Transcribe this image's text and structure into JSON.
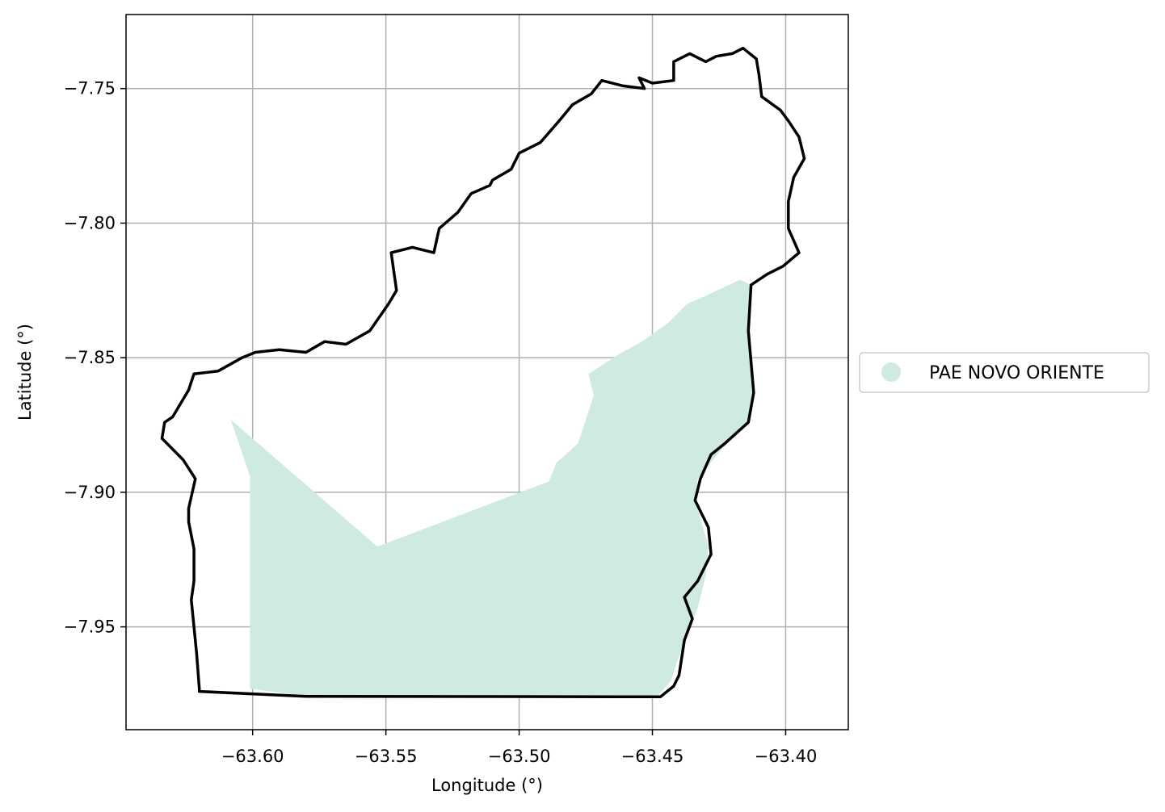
{
  "chart_data": {
    "type": "map",
    "xlabel": "Longitude (°)",
    "ylabel": "Latitude (°)",
    "xlim": [
      -63.6475,
      -63.3765
    ],
    "ylim": [
      -7.9882,
      -7.7225
    ],
    "grid": true,
    "x_ticks": [
      {
        "value": -63.6,
        "label": "−63.60"
      },
      {
        "value": -63.55,
        "label": "−63.55"
      },
      {
        "value": -63.5,
        "label": "−63.50"
      },
      {
        "value": -63.45,
        "label": "−63.45"
      },
      {
        "value": -63.4,
        "label": "−63.40"
      }
    ],
    "y_ticks": [
      {
        "value": -7.75,
        "label": "−7.75"
      },
      {
        "value": -7.8,
        "label": "−7.80"
      },
      {
        "value": -7.85,
        "label": "−7.85"
      },
      {
        "value": -7.9,
        "label": "−7.90"
      },
      {
        "value": -7.95,
        "label": "−7.95"
      }
    ],
    "legend": {
      "placement": "center-right outside",
      "entries": [
        {
          "label": "PAE NOVO ORIENTE",
          "color": "#cfeadf",
          "marker": "circle"
        }
      ]
    },
    "series": [
      {
        "name": "PAE NOVO ORIENTE",
        "kind": "filled-polygon",
        "color": "#cfeadf",
        "coordinates": [
          [
            -63.6082,
            -7.873
          ],
          [
            -63.5532,
            -7.9202
          ],
          [
            -63.4889,
            -7.896
          ],
          [
            -63.486,
            -7.889
          ],
          [
            -63.478,
            -7.882
          ],
          [
            -63.472,
            -7.864
          ],
          [
            -63.474,
            -7.856
          ],
          [
            -63.463,
            -7.849
          ],
          [
            -63.454,
            -7.844
          ],
          [
            -63.444,
            -7.837
          ],
          [
            -63.437,
            -7.83
          ],
          [
            -63.43,
            -7.827
          ],
          [
            -63.417,
            -7.821
          ],
          [
            -63.413,
            -7.823
          ],
          [
            -63.414,
            -7.84
          ],
          [
            -63.412,
            -7.863
          ],
          [
            -63.414,
            -7.874
          ],
          [
            -63.424,
            -7.884
          ],
          [
            -63.433,
            -7.895
          ],
          [
            -63.434,
            -7.903
          ],
          [
            -63.429,
            -7.92
          ],
          [
            -63.43,
            -7.931
          ],
          [
            -63.433,
            -7.943
          ],
          [
            -63.439,
            -7.958
          ],
          [
            -63.443,
            -7.97
          ],
          [
            -63.448,
            -7.9757
          ],
          [
            -63.58,
            -7.9757
          ],
          [
            -63.601,
            -7.973
          ],
          [
            -63.601,
            -7.894
          ]
        ]
      },
      {
        "name": "",
        "kind": "boundary-outline",
        "color": "#000000",
        "coordinates": [
          [
            -63.62,
            -7.973
          ],
          [
            -63.621,
            -7.96
          ],
          [
            -63.622,
            -7.95
          ],
          [
            -63.623,
            -7.94
          ],
          [
            -63.622,
            -7.933
          ],
          [
            -63.622,
            -7.921
          ],
          [
            -63.624,
            -7.911
          ],
          [
            -63.624,
            -7.906
          ],
          [
            -63.6215,
            -7.895
          ],
          [
            -63.626,
            -7.888
          ],
          [
            -63.631,
            -7.883
          ],
          [
            -63.634,
            -7.88
          ],
          [
            -63.633,
            -7.874
          ],
          [
            -63.63,
            -7.872
          ],
          [
            -63.627,
            -7.867
          ],
          [
            -63.624,
            -7.862
          ],
          [
            -63.622,
            -7.856
          ],
          [
            -63.613,
            -7.855
          ],
          [
            -63.604,
            -7.85
          ],
          [
            -63.599,
            -7.848
          ],
          [
            -63.59,
            -7.847
          ],
          [
            -63.58,
            -7.848
          ],
          [
            -63.573,
            -7.844
          ],
          [
            -63.565,
            -7.845
          ],
          [
            -63.556,
            -7.84
          ],
          [
            -63.549,
            -7.83
          ],
          [
            -63.546,
            -7.825
          ],
          [
            -63.547,
            -7.818
          ],
          [
            -63.548,
            -7.811
          ],
          [
            -63.54,
            -7.809
          ],
          [
            -63.532,
            -7.811
          ],
          [
            -63.53,
            -7.802
          ],
          [
            -63.523,
            -7.796
          ],
          [
            -63.518,
            -7.789
          ],
          [
            -63.511,
            -7.786
          ],
          [
            -63.51,
            -7.784
          ],
          [
            -63.503,
            -7.78
          ],
          [
            -63.5,
            -7.774
          ],
          [
            -63.492,
            -7.77
          ],
          [
            -63.485,
            -7.762
          ],
          [
            -63.48,
            -7.756
          ],
          [
            -63.473,
            -7.752
          ],
          [
            -63.469,
            -7.747
          ],
          [
            -63.461,
            -7.749
          ],
          [
            -63.453,
            -7.75
          ],
          [
            -63.455,
            -7.746
          ],
          [
            -63.45,
            -7.748
          ],
          [
            -63.442,
            -7.747
          ],
          [
            -63.442,
            -7.74
          ],
          [
            -63.436,
            -7.737
          ],
          [
            -63.43,
            -7.74
          ],
          [
            -63.426,
            -7.738
          ],
          [
            -63.42,
            -7.737
          ],
          [
            -63.416,
            -7.735
          ],
          [
            -63.411,
            -7.739
          ],
          [
            -63.41,
            -7.745
          ],
          [
            -63.409,
            -7.753
          ],
          [
            -63.402,
            -7.758
          ],
          [
            -63.399,
            -7.762
          ],
          [
            -63.395,
            -7.768
          ],
          [
            -63.393,
            -7.776
          ],
          [
            -63.397,
            -7.783
          ],
          [
            -63.399,
            -7.792
          ],
          [
            -63.399,
            -7.802
          ],
          [
            -63.395,
            -7.811
          ],
          [
            -63.401,
            -7.816
          ],
          [
            -63.407,
            -7.819
          ],
          [
            -63.413,
            -7.823
          ],
          [
            -63.414,
            -7.84
          ],
          [
            -63.412,
            -7.863
          ],
          [
            -63.414,
            -7.874
          ],
          [
            -63.423,
            -7.882
          ],
          [
            -63.428,
            -7.886
          ],
          [
            -63.432,
            -7.895
          ],
          [
            -63.434,
            -7.903
          ],
          [
            -63.429,
            -7.913
          ],
          [
            -63.428,
            -7.923
          ],
          [
            -63.433,
            -7.933
          ],
          [
            -63.438,
            -7.939
          ],
          [
            -63.435,
            -7.947
          ],
          [
            -63.438,
            -7.955
          ],
          [
            -63.44,
            -7.968
          ],
          [
            -63.442,
            -7.972
          ],
          [
            -63.447,
            -7.976
          ],
          [
            -63.58,
            -7.9758
          ],
          [
            -63.62,
            -7.974
          ]
        ]
      }
    ]
  }
}
